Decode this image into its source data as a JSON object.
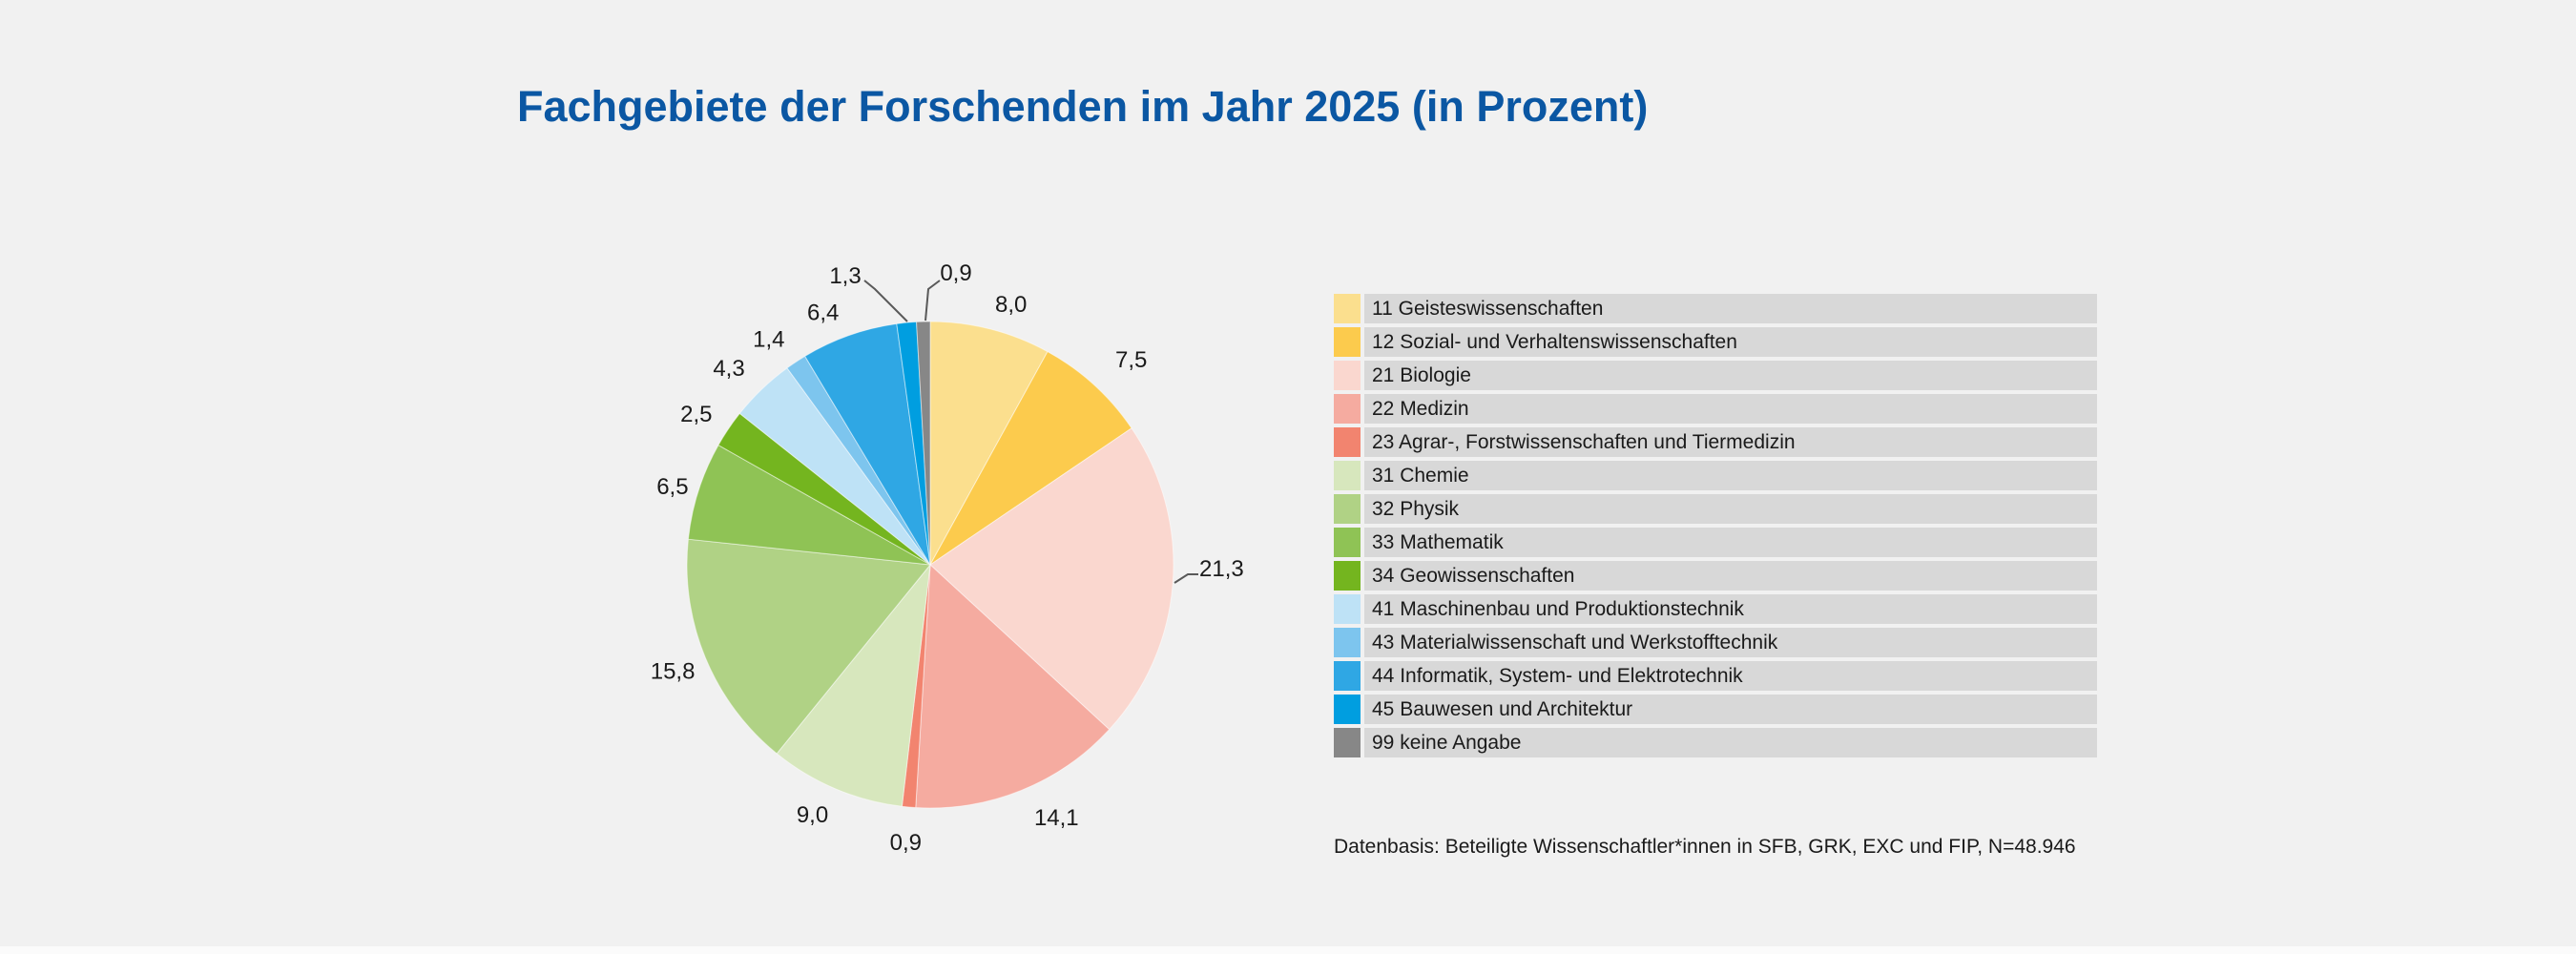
{
  "page": {
    "background": "#F1F1F1"
  },
  "title": {
    "text": "Fachgebiete der Forschenden im Jahr 2025 (in Prozent)",
    "color": "#0B57A3"
  },
  "footer": {
    "text": "Datenbasis: Beteiligte Wissenschaftler*innen in SFB, GRK, EXC und FIP, N=48.946"
  },
  "chart_data": {
    "type": "pie",
    "title": "Fachgebiete der Forschenden im Jahr 2025 (in Prozent)",
    "start_angle": "12 o'clock",
    "direction": "clockwise",
    "legend_position": "right",
    "legend_row_background": "#D8D8D8",
    "label_color": "#1A1A1A",
    "leader_line_color": "#595959",
    "categories": [
      "11 Geisteswissenschaften",
      "12 Sozial- und Verhaltenswissenschaften",
      "21 Biologie",
      "22 Medizin",
      "23 Agrar-, Forstwissenschaften und Tiermedizin",
      "31 Chemie",
      "32 Physik",
      "33 Mathematik",
      "34 Geowissenschaften",
      "41 Maschinenbau und Produktionstechnik",
      "43 Materialwissenschaft und Werkstofftechnik",
      "44 Informatik, System- und Elektrotechnik",
      "45 Bauwesen und Architektur",
      "99 keine Angabe"
    ],
    "codes": [
      "11",
      "12",
      "21",
      "22",
      "23",
      "31",
      "32",
      "33",
      "34",
      "41",
      "43",
      "44",
      "45",
      "99"
    ],
    "values": [
      8.0,
      7.5,
      21.3,
      14.1,
      0.9,
      9.0,
      15.8,
      6.5,
      2.5,
      4.3,
      1.4,
      6.4,
      1.3,
      0.9
    ],
    "display_labels": [
      "8,0",
      "7,5",
      "21,3",
      "14,1",
      "0,9",
      "9,0",
      "15,8",
      "6,5",
      "2,5",
      "4,3",
      "1,4",
      "6,4",
      "1,3",
      "0,9"
    ],
    "colors": [
      "#FBDF8E",
      "#FCCB4D",
      "#FAD7CF",
      "#F5ABA0",
      "#F2846F",
      "#D7E7BD",
      "#B0D285",
      "#8FC355",
      "#74B51F",
      "#BEE2F6",
      "#7DC5EE",
      "#2FA7E4",
      "#009EE0",
      "#878787"
    ]
  }
}
